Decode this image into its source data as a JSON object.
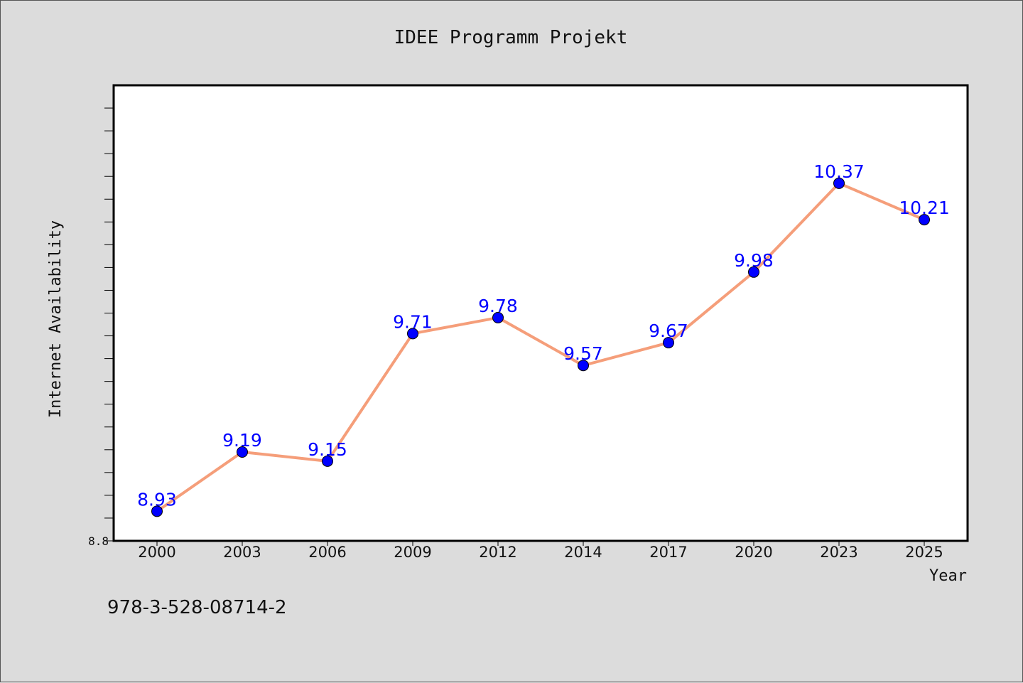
{
  "chart_data": {
    "type": "line",
    "title": "IDEE Programm Projekt",
    "xlabel": "Year",
    "ylabel": "Internet Availability",
    "categories": [
      "2000",
      "2003",
      "2006",
      "2009",
      "2012",
      "2014",
      "2017",
      "2020",
      "2023",
      "2025"
    ],
    "series": [
      {
        "values": [
          8.93,
          9.19,
          9.15,
          9.71,
          9.78,
          9.57,
          9.67,
          9.98,
          10.37,
          10.21
        ]
      }
    ],
    "ylim": [
      8.8,
      10.8
    ],
    "yticks_labeled": [
      "8.8"
    ],
    "grid": false,
    "line_color": "#f59e7a",
    "marker_color": "#0000ff",
    "label_color": "#0000ff",
    "annotation": "978-3-528-08714-2"
  }
}
